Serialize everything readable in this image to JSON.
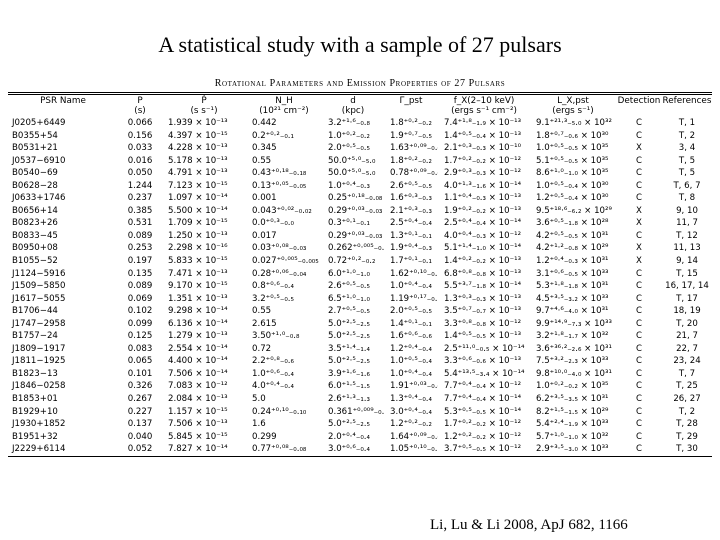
{
  "slide": {
    "title": "A statistical study with a sample of 27 pulsars"
  },
  "table": {
    "caption": "Rotational Parameters and Emission Properties of 27 Pulsars",
    "headers": [
      {
        "line1": "PSR Name",
        "line2": ""
      },
      {
        "line1": "P",
        "line2": "(s)"
      },
      {
        "line1": "Ṗ",
        "line2": "(s s⁻¹)"
      },
      {
        "line1": "N_H",
        "line2": "(10²¹ cm⁻²)"
      },
      {
        "line1": "d",
        "line2": "(kpc)"
      },
      {
        "line1": "",
        "line2": "Γ_pst"
      },
      {
        "line1": "f_X(2–10 keV)",
        "line2": "(ergs s⁻¹ cm⁻²)"
      },
      {
        "line1": "L_X,pst",
        "line2": "(ergs s⁻¹)"
      },
      {
        "line1": "",
        "line2": "Detection"
      },
      {
        "line1": "",
        "line2": "References"
      }
    ],
    "rows": [
      {
        "name": "J0205+6449",
        "p": "0.066",
        "pdot": "1.939 × 10⁻¹³",
        "nh": "0.442",
        "d": "3.2⁺¹·⁶₋₀.₈",
        "gamma": "1.8⁺⁰·²₋₀.₂",
        "fx": "7.4⁺¹·⁸₋₁.₉ × 10⁻¹³",
        "lx": "9.1⁺²¹·³₋₅.₀ × 10³²",
        "det": "C",
        "ref": "T, 1"
      },
      {
        "name": "B0355+54",
        "p": "0.156",
        "pdot": "4.397 × 10⁻¹⁵",
        "nh": "0.2⁺⁰·²₋₀.₁",
        "d": "1.0⁺⁰·²₋₀.₂",
        "gamma": "1.9⁺⁰·⁷₋₀.₅",
        "fx": "1.4⁺⁰·⁵₋₀.₄ × 10⁻¹³",
        "lx": "1.8⁺⁰·⁷₋₀.₆ × 10³⁰",
        "det": "C",
        "ref": "T, 2"
      },
      {
        "name": "B0531+21",
        "p": "0.033",
        "pdot": "4.228 × 10⁻¹³",
        "nh": "0.345",
        "d": "2.0⁺⁰·⁵₋₀.₅",
        "gamma": "1.63⁺⁰·⁰⁹₋₀.₀₉",
        "fx": "2.1⁺⁰·³₋₀.₃ × 10⁻¹⁰",
        "lx": "1.0⁺⁰·⁵₋₀.₅ × 10³⁵",
        "det": "X",
        "ref": "3, 4"
      },
      {
        "name": "J0537−6910",
        "p": "0.016",
        "pdot": "5.178 × 10⁻¹³",
        "nh": "0.55",
        "d": "50.0⁺⁵·⁰₋₅.₀",
        "gamma": "1.8⁺⁰·²₋₀.₂",
        "fx": "1.7⁺⁰·²₋₀.₂ × 10⁻¹²",
        "lx": "5.1⁺⁰·⁵₋₀.₅ × 10³⁵",
        "det": "C",
        "ref": "T, 5"
      },
      {
        "name": "B0540−69",
        "p": "0.050",
        "pdot": "4.791 × 10⁻¹³",
        "nh": "0.43⁺⁰·¹⁸₋₀.₁₈",
        "d": "50.0⁺⁵·⁰₋₅.₀",
        "gamma": "0.78⁺⁰·⁰⁹₋₀.₀₉",
        "fx": "2.9⁺⁰·³₋₀.₃ × 10⁻¹²",
        "lx": "8.6⁺¹·⁰₋₁.₀ × 10³⁵",
        "det": "C",
        "ref": "T, 5"
      },
      {
        "name": "B0628−28",
        "p": "1.244",
        "pdot": "7.123 × 10⁻¹⁵",
        "nh": "0.13⁺⁰·⁰⁵₋₀.₀₅",
        "d": "1.0⁺⁰·⁴₋₀.₃",
        "gamma": "2.6⁺⁰·⁵₋₀.₅",
        "fx": "4.0⁺¹·³₋₁.₆ × 10⁻¹⁴",
        "lx": "1.0⁺⁰·⁵₋₀.₄ × 10³⁰",
        "det": "C",
        "ref": "T, 6, 7"
      },
      {
        "name": "J0633+1746",
        "p": "0.237",
        "pdot": "1.097 × 10⁻¹⁴",
        "nh": "0.001",
        "d": "0.25⁺⁰·¹⁸₋₀.₀₈",
        "gamma": "1.6⁺⁰·³₋₀.₃",
        "fx": "1.1⁺⁰·⁴₋₀.₃ × 10⁻¹³",
        "lx": "1.2⁺⁰·⁵₋₀.₄ × 10³⁰",
        "det": "C",
        "ref": "T, 8"
      },
      {
        "name": "B0656+14",
        "p": "0.385",
        "pdot": "5.500 × 10⁻¹⁴",
        "nh": "0.043⁺⁰·⁰²₋₀.₀₂",
        "d": "0.29⁺⁰·⁰³₋₀.₀₃",
        "gamma": "2.1⁺⁰·³₋₀.₃",
        "fx": "1.9⁺⁰·²₋₀.₂ × 10⁻¹³",
        "lx": "9.5⁺¹⁸·⁶₋₆.₂ × 10²⁹",
        "det": "X",
        "ref": "9, 10"
      },
      {
        "name": "B0823+26",
        "p": "0.531",
        "pdot": "1.709 × 10⁻¹⁵",
        "nh": "0.0⁺⁰·³₋₀.₀",
        "d": "0.3⁺⁰·¹₋₀.₁",
        "gamma": "2.5⁺⁰·⁴₋₀.₄",
        "fx": "2.5⁺⁰·⁴₋₀.₄ × 10⁻¹⁴",
        "lx": "3.6⁺⁰·⁵₋₁.₈ × 10²⁸",
        "det": "X",
        "ref": "11, 7"
      },
      {
        "name": "B0833−45",
        "p": "0.089",
        "pdot": "1.250 × 10⁻¹³",
        "nh": "0.017",
        "d": "0.29⁺⁰·⁰³₋₀.₀₃",
        "gamma": "1.3⁺⁰·¹₋₀.₁",
        "fx": "4.0⁺⁰·⁴₋₀.₃ × 10⁻¹²",
        "lx": "4.2⁺⁰·⁵₋₀.₅ × 10³¹",
        "det": "C",
        "ref": "T, 12"
      },
      {
        "name": "B0950+08",
        "p": "0.253",
        "pdot": "2.298 × 10⁻¹⁶",
        "nh": "0.03⁺⁰·⁰⁸₋₀.₀₃",
        "d": "0.262⁺⁰·⁰⁰⁵₋₀.₀₀₅",
        "gamma": "1.9⁺⁰·⁴₋₀.₃",
        "fx": "5.1⁺¹·⁴₋₁.₀ × 10⁻¹⁴",
        "lx": "4.2⁺¹·²₋₀.₈ × 10²⁹",
        "det": "X",
        "ref": "11, 13"
      },
      {
        "name": "B1055−52",
        "p": "0.197",
        "pdot": "5.833 × 10⁻¹⁵",
        "nh": "0.027⁺⁰·⁰⁰⁵₋₀.₀₀₅",
        "d": "0.72⁺⁰·²₋₀.₂",
        "gamma": "1.7⁺⁰·¹₋₀.₁",
        "fx": "1.4⁺⁰·²₋₀.₂ × 10⁻¹³",
        "lx": "1.2⁺⁰·⁴₋₀.₃ × 10³¹",
        "det": "X",
        "ref": "9, 14"
      },
      {
        "name": "J1124−5916",
        "p": "0.135",
        "pdot": "7.471 × 10⁻¹³",
        "nh": "0.28⁺⁰·⁰⁶₋₀.₀₄",
        "d": "6.0⁺¹·⁰₋₁.₀",
        "gamma": "1.62⁺⁰·¹⁰₋₀.₁₀",
        "fx": "6.8⁺⁰·⁸₋₀.₈ × 10⁻¹³",
        "lx": "3.1⁺⁰·⁶₋₀.₅ × 10³³",
        "det": "C",
        "ref": "T, 15"
      },
      {
        "name": "J1509−5850",
        "p": "0.089",
        "pdot": "9.170 × 10⁻¹⁵",
        "nh": "0.8⁺⁰·⁶₋₀.₄",
        "d": "2.6⁺⁰·⁵₋₀.₅",
        "gamma": "1.0⁺⁰·⁴₋₀.₄",
        "fx": "5.5⁺³·⁷₋₁.₈ × 10⁻¹⁴",
        "lx": "5.3⁺¹·⁸₋₁.₈ × 10³¹",
        "det": "C",
        "ref": "16, 17, 14"
      },
      {
        "name": "J1617−5055",
        "p": "0.069",
        "pdot": "1.351 × 10⁻¹³",
        "nh": "3.2⁺⁰·⁵₋₀.₅",
        "d": "6.5⁺¹·⁰₋₁.₀",
        "gamma": "1.19⁺⁰·¹⁷₋₀.₁₇",
        "fx": "1.3⁺⁰·³₋₀.₃ × 10⁻¹³",
        "lx": "4.5⁺³·⁵₋₃.₂ × 10³³",
        "det": "C",
        "ref": "T, 17"
      },
      {
        "name": "B1706−44",
        "p": "0.102",
        "pdot": "9.298 × 10⁻¹⁴",
        "nh": "0.55",
        "d": "2.7⁺⁰·⁵₋₀.₅",
        "gamma": "2.0⁺⁰·⁵₋₀.₅",
        "fx": "3.5⁺⁰·⁷₋₀.₇ × 10⁻¹³",
        "lx": "9.7⁺⁴·⁶₋₄.₀ × 10³¹",
        "det": "C",
        "ref": "18, 19"
      },
      {
        "name": "J1747−2958",
        "p": "0.099",
        "pdot": "6.136 × 10⁻¹⁴",
        "nh": "2.615",
        "d": "5.0⁺²·⁵₋₂.₅",
        "gamma": "1.4⁺⁰·¹₋₀.₁",
        "fx": "3.3⁺⁰·⁸₋₀.₈ × 10⁻¹²",
        "lx": "9.9⁺¹⁴·⁹₋₇.₃ × 10³³",
        "det": "C",
        "ref": "T, 20"
      },
      {
        "name": "B1757−24",
        "p": "0.125",
        "pdot": "1.279 × 10⁻¹³",
        "nh": "3.50⁺¹·⁰₋₀.₈",
        "d": "5.0⁺²·⁵₋₂.₅",
        "gamma": "1.6⁺⁰·⁶₋₀.₆",
        "fx": "1.4⁺⁰·⁵₋₀.₅ × 10⁻¹³",
        "lx": "3.2⁺¹·⁸₋₁.₇ × 10³²",
        "det": "C",
        "ref": "21, 7"
      },
      {
        "name": "J1809−1917",
        "p": "0.083",
        "pdot": "2.554 × 10⁻¹⁴",
        "nh": "0.72",
        "d": "3.5⁺¹·⁴₋₁.₄",
        "gamma": "1.2⁺⁰·⁴₋₀.₄",
        "fx": "2.5⁺¹¹·⁰₋₀.₅ × 10⁻¹⁴",
        "lx": "3.6⁺³⁶·²₋₂.₆ × 10³¹",
        "det": "C",
        "ref": "22, 7"
      },
      {
        "name": "J1811−1925",
        "p": "0.065",
        "pdot": "4.400 × 10⁻¹⁴",
        "nh": "2.2⁺⁰·⁸₋₀.₆",
        "d": "5.0⁺²·⁵₋₂.₅",
        "gamma": "1.0⁺⁰·⁵₋₀.₄",
        "fx": "3.3⁺⁰·⁶₋₀.₆ × 10⁻¹³",
        "lx": "7.5⁺³·²₋₂.₃ × 10³³",
        "det": "C",
        "ref": "23, 24"
      },
      {
        "name": "B1823−13",
        "p": "0.101",
        "pdot": "7.506 × 10⁻¹⁴",
        "nh": "1.0⁺⁰·⁶₋₀.₄",
        "d": "3.9⁺¹·⁶₋₁.₆",
        "gamma": "1.0⁺⁰·⁴₋₀.₄",
        "fx": "5.4⁺¹³·⁵₋₃.₄ × 10⁻¹⁴",
        "lx": "9.8⁺¹⁰·⁰₋₄.₀ × 10³¹",
        "det": "C",
        "ref": "T, 7"
      },
      {
        "name": "J1846−0258",
        "p": "0.326",
        "pdot": "7.083 × 10⁻¹²",
        "nh": "4.0⁺⁰·⁴₋₀.₄",
        "d": "6.0⁺¹·⁵₋₁.₅",
        "gamma": "1.91⁺⁰·⁰³₋₀.₀₃",
        "fx": "7.7⁺⁰·⁴₋₀.₄ × 10⁻¹²",
        "lx": "1.0⁺⁰·²₋₀.₂ × 10³⁵",
        "det": "C",
        "ref": "T, 25"
      },
      {
        "name": "B1853+01",
        "p": "0.267",
        "pdot": "2.084 × 10⁻¹³",
        "nh": "5.0",
        "d": "2.6⁺¹·³₋₁.₃",
        "gamma": "1.3⁺⁰·⁴₋₀.₄",
        "fx": "7.7⁺⁰·⁴₋₀.₄ × 10⁻¹⁴",
        "lx": "6.2⁺³·⁵₋₃.₅ × 10³¹",
        "det": "C",
        "ref": "26, 27"
      },
      {
        "name": "B1929+10",
        "p": "0.227",
        "pdot": "1.157 × 10⁻¹⁵",
        "nh": "0.24⁺⁰·¹⁰₋₀.₁₀",
        "d": "0.361⁺⁰·⁰⁰⁹₋₀.₀₀₉",
        "gamma": "3.0⁺⁰·⁴₋₀.₄",
        "fx": "5.3⁺⁰·⁵₋₀.₅ × 10⁻¹⁴",
        "lx": "8.2⁺¹·⁵₋₁.₅ × 10²⁹",
        "det": "C",
        "ref": "T, 2"
      },
      {
        "name": "J1930+1852",
        "p": "0.137",
        "pdot": "7.506 × 10⁻¹³",
        "nh": "1.6",
        "d": "5.0⁺²·⁵₋₂.₅",
        "gamma": "1.2⁺⁰·²₋₀.₂",
        "fx": "1.7⁺⁰·²₋₀.₂ × 10⁻¹²",
        "lx": "5.4⁺²·⁴₋₁.₉ × 10³³",
        "det": "C",
        "ref": "T, 28"
      },
      {
        "name": "B1951+32",
        "p": "0.040",
        "pdot": "5.845 × 10⁻¹⁵",
        "nh": "0.299",
        "d": "2.0⁺⁰·⁴₋₀.₄",
        "gamma": "1.64⁺⁰·⁰⁹₋₀.₀₉",
        "fx": "1.2⁺⁰·²₋₀.₂ × 10⁻¹²",
        "lx": "5.7⁺¹·⁰₋₁.₀ × 10³²",
        "det": "C",
        "ref": "T, 29"
      },
      {
        "name": "J2229+6114",
        "p": "0.052",
        "pdot": "7.827 × 10⁻¹⁴",
        "nh": "0.77⁺⁰·⁰⁸₋₀.₀₈",
        "d": "3.0⁺⁰·⁶₋₀.₄",
        "gamma": "1.05⁺⁰·¹⁰₋₀.₁₀",
        "fx": "3.7⁺⁰·⁵₋₀.₅ × 10⁻¹²",
        "lx": "2.9⁺³·⁵₋₃.₀ × 10³³",
        "det": "C",
        "ref": "T, 30"
      }
    ]
  },
  "citation": "Li, Lu & Li 2008, ApJ 682, 1166"
}
